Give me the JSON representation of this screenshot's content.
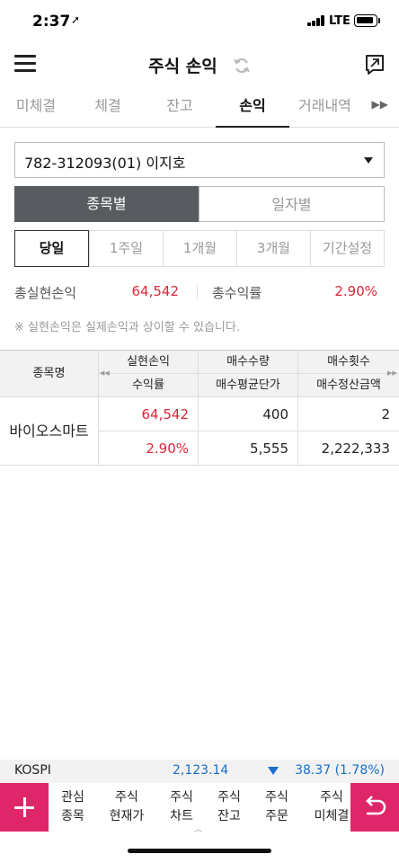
{
  "status": {
    "time": "2:37",
    "network": "LTE"
  },
  "header": {
    "title": "주식 손익"
  },
  "tabs": [
    {
      "label": "미체결"
    },
    {
      "label": "체결"
    },
    {
      "label": "잔고"
    },
    {
      "label": "손익"
    },
    {
      "label": "거래내역"
    }
  ],
  "account": {
    "value": "782-312093(01) 이지호"
  },
  "segment": {
    "by_stock": "종목별",
    "by_date": "일자별"
  },
  "period": [
    {
      "label": "당일"
    },
    {
      "label": "1주일"
    },
    {
      "label": "1개월"
    },
    {
      "label": "3개월"
    },
    {
      "label": "기간설정"
    }
  ],
  "summary": {
    "realized_label": "총실현손익",
    "realized_value": "64,542",
    "return_label": "총수익률",
    "return_value": "2.90%"
  },
  "notice": "※ 실현손익은 실제손익과 상이할 수 있습니다.",
  "table": {
    "headers": {
      "name": "종목명",
      "realized": "실현손익",
      "return": "수익률",
      "buy_qty": "매수수량",
      "buy_avg": "매수평균단가",
      "buy_count": "매수횟수",
      "buy_settle": "매수정산금액"
    },
    "rows": [
      {
        "name": "바이오스마트",
        "realized": "64,542",
        "return": "2.90%",
        "buy_qty": "400",
        "buy_avg": "5,555",
        "buy_count": "2",
        "buy_settle": "2,222,333"
      }
    ]
  },
  "index": {
    "name": "KOSPI",
    "value": "2,123.14",
    "change": "38.37 (1.78%)"
  },
  "bottom_nav": [
    {
      "line1": "관심",
      "line2": "종목"
    },
    {
      "line1": "주식",
      "line2": "현재가"
    },
    {
      "line1": "주식",
      "line2": "차트"
    },
    {
      "line1": "주식",
      "line2": "잔고"
    },
    {
      "line1": "주식",
      "line2": "주문"
    },
    {
      "line1": "주식",
      "line2": "미체결"
    }
  ],
  "colors": {
    "accent": "#e0266b",
    "profit": "#d9283a",
    "index": "#1a6ec9",
    "segment_on": "#585c61"
  }
}
